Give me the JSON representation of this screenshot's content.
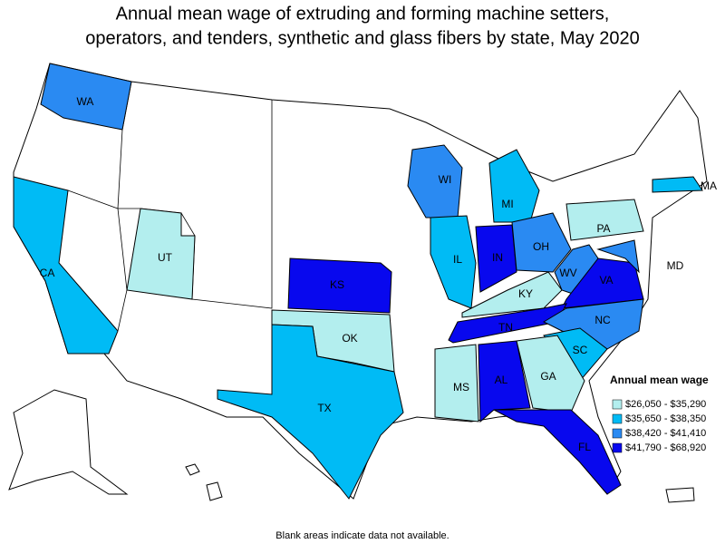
{
  "title": [
    "Annual mean wage of extruding and forming machine setters,",
    "operators, and tenders, synthetic and glass fibers by state, May 2020"
  ],
  "legend": {
    "title": "Annual mean wage",
    "items": [
      {
        "label": "$26,050 - $35,290",
        "color": "#b3eeee"
      },
      {
        "label": "$35,650 - $38,350",
        "color": "#00bbf5"
      },
      {
        "label": "$38,420 - $41,410",
        "color": "#2a8af2"
      },
      {
        "label": "$41,790 - $68,920",
        "color": "#0808ee"
      }
    ]
  },
  "states": [
    {
      "label": "WA",
      "color": "#2a8af2"
    },
    {
      "label": "CA",
      "color": "#00bbf5"
    },
    {
      "label": "UT",
      "color": "#b3eeee"
    },
    {
      "label": "KS",
      "color": "#0808ee"
    },
    {
      "label": "OK",
      "color": "#b3eeee"
    },
    {
      "label": "TX",
      "color": "#00bbf5"
    },
    {
      "label": "WI",
      "color": "#2a8af2"
    },
    {
      "label": "MI",
      "color": "#00bbf5"
    },
    {
      "label": "IL",
      "color": "#00bbf5"
    },
    {
      "label": "IN",
      "color": "#0808ee"
    },
    {
      "label": "OH",
      "color": "#2a8af2"
    },
    {
      "label": "PA",
      "color": "#b3eeee"
    },
    {
      "label": "KY",
      "color": "#b3eeee"
    },
    {
      "label": "WV",
      "color": "#2a8af2"
    },
    {
      "label": "VA",
      "color": "#0808ee"
    },
    {
      "label": "MD",
      "color": "#2a8af2"
    },
    {
      "label": "MA",
      "color": "#00bbf5"
    },
    {
      "label": "TN",
      "color": "#0808ee"
    },
    {
      "label": "NC",
      "color": "#2a8af2"
    },
    {
      "label": "SC",
      "color": "#00bbf5"
    },
    {
      "label": "MS",
      "color": "#b3eeee"
    },
    {
      "label": "AL",
      "color": "#0808ee"
    },
    {
      "label": "GA",
      "color": "#b3eeee"
    },
    {
      "label": "FL",
      "color": "#0808ee"
    }
  ],
  "footnote": "Blank areas indicate data not available."
}
